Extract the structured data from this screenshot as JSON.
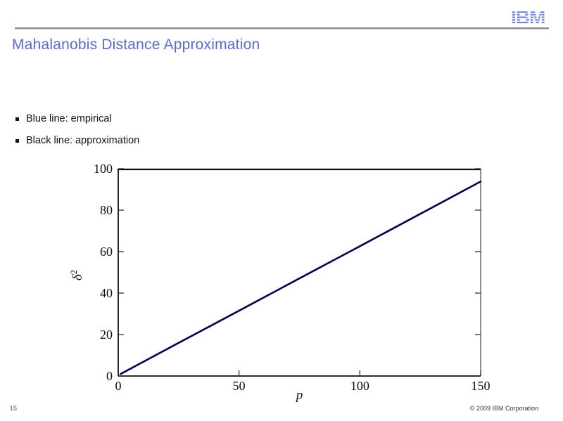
{
  "header": {
    "logo_text": "IBM",
    "logo_color": "#6e7ef0",
    "rule_color": "#8c8c8c"
  },
  "title": {
    "text": "Mahalanobis Distance Approximation",
    "color": "#5a69e0"
  },
  "bullets": [
    {
      "label": "Blue line: empirical"
    },
    {
      "label": "Black line: approximation"
    }
  ],
  "footer": {
    "page_number": "15",
    "copyright": "© 2009 IBM Corporation"
  },
  "chart_data": {
    "type": "line",
    "title": "",
    "xlabel": "p",
    "ylabel": "δ²",
    "xlim": [
      0,
      150
    ],
    "ylim": [
      0,
      100
    ],
    "xticks": [
      0,
      50,
      100,
      150
    ],
    "yticks": [
      0,
      20,
      40,
      60,
      80,
      100
    ],
    "grid": false,
    "legend": "none",
    "x": [
      1,
      25,
      50,
      75,
      100,
      125,
      150
    ],
    "series": [
      {
        "name": "empirical",
        "color": "#0000bb",
        "values": [
          1.0,
          16.0,
          31.5,
          47.1,
          62.6,
          78.2,
          93.8
        ]
      },
      {
        "name": "approximation",
        "color": "#000000",
        "values": [
          0.9,
          15.9,
          31.4,
          47.0,
          62.5,
          78.1,
          93.7
        ]
      }
    ]
  }
}
